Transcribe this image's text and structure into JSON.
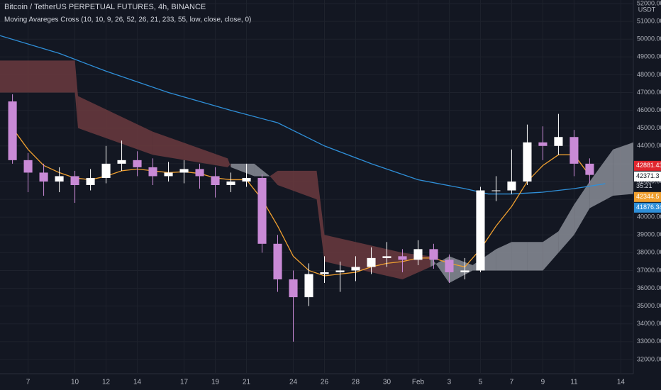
{
  "chart_data": {
    "type": "candlestick",
    "title": "Bitcoin / TetherUS PERPETUAL FUTURES, 4h, BINANCE",
    "subtitle": "Moving Avareges Cross (10, 10, 9, 26, 52, 26, 21, 233, 55, low, close, close, 0)",
    "y_unit": "USDT",
    "up_color": "#ffffff",
    "down_color": "#c98ad6",
    "grid": true,
    "xlim": [
      -1.8,
      38.8
    ],
    "ylim": [
      31200,
      52200
    ],
    "xticks": [
      {
        "value": 0,
        "label": "7"
      },
      {
        "value": 3,
        "label": "10"
      },
      {
        "value": 5,
        "label": "12"
      },
      {
        "value": 7,
        "label": "14"
      },
      {
        "value": 10,
        "label": "17"
      },
      {
        "value": 12,
        "label": "19"
      },
      {
        "value": 14,
        "label": "21"
      },
      {
        "value": 17,
        "label": "24"
      },
      {
        "value": 19,
        "label": "26"
      },
      {
        "value": 21,
        "label": "28"
      },
      {
        "value": 23,
        "label": "30"
      },
      {
        "value": 25,
        "label": "Feb"
      },
      {
        "value": 27,
        "label": "3"
      },
      {
        "value": 29,
        "label": "5"
      },
      {
        "value": 31,
        "label": "7"
      },
      {
        "value": 33,
        "label": "9"
      },
      {
        "value": 35,
        "label": "11"
      },
      {
        "value": 38,
        "label": "14"
      }
    ],
    "yticks": [
      {
        "value": 32000,
        "label": "32000.00"
      },
      {
        "value": 33000,
        "label": "33000.00"
      },
      {
        "value": 34000,
        "label": "34000.00"
      },
      {
        "value": 35000,
        "label": "35000.00"
      },
      {
        "value": 36000,
        "label": "36000.00"
      },
      {
        "value": 37000,
        "label": "37000.00"
      },
      {
        "value": 38000,
        "label": "38000.00"
      },
      {
        "value": 39000,
        "label": "39000.00"
      },
      {
        "value": 40000,
        "label": "40000.00"
      },
      {
        "value": 41000,
        "label": "41000.00"
      },
      {
        "value": 42000,
        "label": "42000.00"
      },
      {
        "value": 43000,
        "label": "43000.00"
      },
      {
        "value": 44000,
        "label": "44000.00"
      },
      {
        "value": 45000,
        "label": "45000.00"
      },
      {
        "value": 46000,
        "label": "46000.00"
      },
      {
        "value": 47000,
        "label": "47000.00"
      },
      {
        "value": 48000,
        "label": "48000.00"
      },
      {
        "value": 49000,
        "label": "49000.00"
      },
      {
        "value": 50000,
        "label": "50000.00"
      },
      {
        "value": 51000,
        "label": "51000.00"
      },
      {
        "value": 52000,
        "label": "52000.00"
      }
    ],
    "x": [
      -1,
      0,
      1,
      2,
      3,
      4,
      5,
      6,
      7,
      8,
      9,
      10,
      11,
      12,
      13,
      14,
      15,
      16,
      17,
      18,
      19,
      20,
      21,
      22,
      23,
      24,
      25,
      26,
      27,
      28,
      29,
      30,
      31,
      32,
      33,
      34,
      35,
      36
    ],
    "open": [
      46500,
      43200,
      42500,
      42000,
      42300,
      41800,
      42200,
      43000,
      43200,
      42800,
      42300,
      42500,
      42700,
      42300,
      41800,
      42000,
      42200,
      38500,
      36500,
      35500,
      36800,
      36900,
      37000,
      37200,
      37700,
      37800,
      37600,
      38200,
      37600,
      36900,
      37000,
      41500,
      41500,
      42000,
      44200,
      44000,
      44500,
      43000
    ],
    "high": [
      46900,
      43600,
      43000,
      42800,
      42600,
      42700,
      44000,
      44300,
      43700,
      43300,
      43100,
      43200,
      43000,
      42800,
      42500,
      43000,
      42400,
      39000,
      37000,
      37400,
      37800,
      37500,
      37800,
      38300,
      38600,
      38200,
      38700,
      38500,
      37900,
      37700,
      41700,
      42300,
      43800,
      45200,
      45100,
      45800,
      44900,
      43300
    ],
    "low": [
      43000,
      41400,
      41200,
      41400,
      40800,
      41500,
      41900,
      42600,
      42300,
      41800,
      42000,
      41900,
      41600,
      41100,
      41400,
      41700,
      38000,
      35800,
      33000,
      35000,
      36300,
      35800,
      36400,
      36800,
      37200,
      36900,
      37300,
      37100,
      36300,
      36500,
      36900,
      40900,
      41300,
      41800,
      43200,
      43500,
      42300,
      41900
    ],
    "close": [
      43200,
      42500,
      42000,
      42300,
      41800,
      42200,
      43000,
      43200,
      42800,
      42300,
      42500,
      42700,
      42300,
      41800,
      42000,
      42200,
      38500,
      36500,
      35500,
      36800,
      36900,
      37000,
      37200,
      37700,
      37800,
      37600,
      38200,
      37600,
      36900,
      37000,
      41500,
      41500,
      42000,
      44200,
      44000,
      44500,
      43000,
      42371.3
    ],
    "lines": [
      {
        "color": "#2f8fd8",
        "x": [
          -1.8,
          2,
          5,
          9,
          13,
          16,
          19,
          22,
          25,
          28,
          29.5,
          31,
          33,
          35,
          37
        ],
        "values": [
          50200,
          49200,
          48200,
          47000,
          46000,
          45300,
          44000,
          43000,
          42100,
          41600,
          41300,
          41300,
          41400,
          41600,
          41876.34
        ]
      },
      {
        "color": "#f0a030",
        "x": [
          -1,
          0,
          1,
          2,
          3,
          4,
          5,
          6,
          7,
          8,
          9,
          10,
          11,
          12,
          13,
          14,
          15,
          16,
          17,
          18,
          19,
          20,
          21,
          22,
          23,
          24,
          25,
          26,
          27,
          28,
          29,
          30,
          31,
          32,
          33,
          34,
          35,
          36
        ],
        "values": [
          45000,
          43800,
          42900,
          42500,
          42200,
          42100,
          42300,
          42600,
          42700,
          42600,
          42500,
          42550,
          42450,
          42200,
          42100,
          42100,
          41000,
          39500,
          37800,
          37000,
          36700,
          36800,
          36900,
          37200,
          37400,
          37500,
          37700,
          37700,
          37400,
          37200,
          38200,
          39500,
          40600,
          42000,
          42900,
          43500,
          43500,
          42344.5
        ]
      }
    ],
    "cloud": {
      "up_color": "#8a8d96",
      "down_color": "#6b3a3e",
      "x": [
        -1.8,
        3,
        3.2,
        8,
        12.8,
        13,
        14.5,
        15.5,
        16,
        18.5,
        19,
        24,
        25.8,
        27,
        28.5,
        30,
        31,
        32,
        33,
        34,
        35,
        36,
        37.5,
        38.8
      ],
      "span_a": [
        47000,
        47000,
        45000,
        43500,
        42800,
        43000,
        43000,
        42300,
        41800,
        41000,
        37500,
        36500,
        37200,
        37800,
        37300,
        38200,
        38600,
        38600,
        38600,
        39200,
        40700,
        42000,
        43800,
        44200
      ],
      "span_b": [
        48800,
        48800,
        46800,
        44800,
        43300,
        42800,
        42300,
        42300,
        42600,
        42600,
        39000,
        38000,
        37800,
        36300,
        37000,
        37000,
        37000,
        37000,
        37000,
        38000,
        39000,
        40500,
        41200,
        41300
      ]
    },
    "price_labels": [
      {
        "value": 42881.43,
        "color": "#e0262e"
      },
      {
        "value": 42371.3,
        "color": "#ffffff"
      },
      {
        "value": 42344.5,
        "color": "#f0a030"
      },
      {
        "value": 41876.34,
        "color": "#2f8fd8"
      }
    ],
    "countdown": "35:21"
  }
}
